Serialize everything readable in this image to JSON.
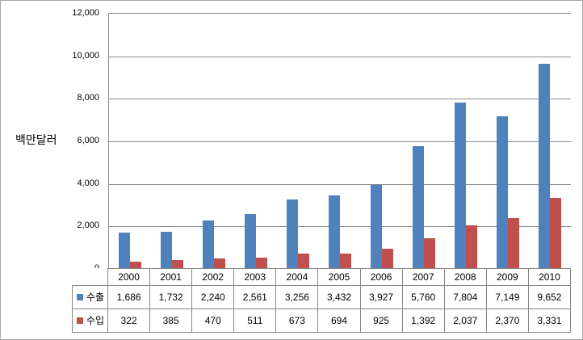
{
  "y_axis": {
    "unit_label": "백만달러",
    "ticks": [
      "12,000",
      "10,000",
      "8,000",
      "6,000",
      "4,000",
      "2,000",
      "0"
    ]
  },
  "chart_data": {
    "type": "bar",
    "title": "",
    "ylabel": "백만달러",
    "xlabel": "",
    "ylim": [
      0,
      12000
    ],
    "y_tick_step": 2000,
    "grid": true,
    "legend_position": "data-table-left",
    "categories": [
      "2000",
      "2001",
      "2002",
      "2003",
      "2004",
      "2005",
      "2006",
      "2007",
      "2008",
      "2009",
      "2010"
    ],
    "series": [
      {
        "key": "export",
        "name": "수출",
        "color": "#4f81bd",
        "values": [
          1686,
          1732,
          2240,
          2561,
          3256,
          3432,
          3927,
          5760,
          7804,
          7149,
          9652
        ],
        "labels": [
          "1,686",
          "1,732",
          "2,240",
          "2,561",
          "3,256",
          "3,432",
          "3,927",
          "5,760",
          "7,804",
          "7,149",
          "9,652"
        ]
      },
      {
        "key": "import",
        "name": "수입",
        "color": "#c0504d",
        "values": [
          322,
          385,
          470,
          511,
          673,
          694,
          925,
          1392,
          2037,
          2370,
          3331
        ],
        "labels": [
          "322",
          "385",
          "470",
          "511",
          "673",
          "694",
          "925",
          "1,392",
          "2,037",
          "2,370",
          "3,331"
        ]
      }
    ]
  },
  "colors": {
    "gridline": "#8c8c8c",
    "table_border": "#878787",
    "frame_border": "#a8a8a8",
    "background": "#ffffff"
  }
}
